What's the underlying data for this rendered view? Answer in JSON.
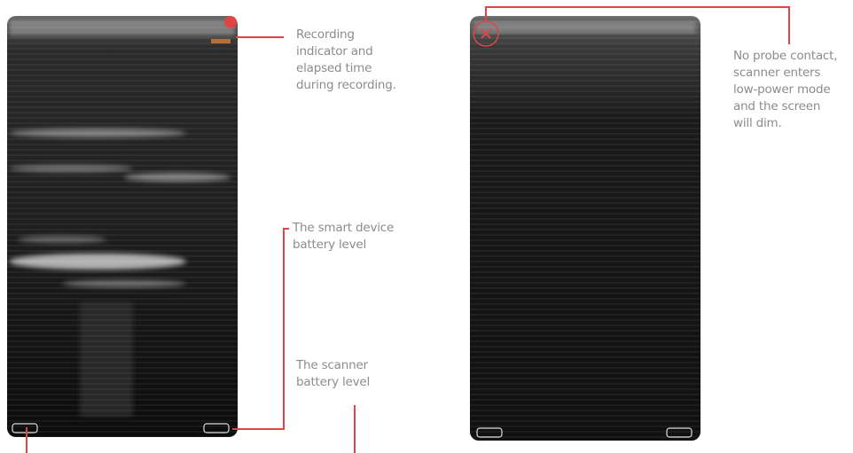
{
  "annotations": [
    {
      "lines": [
        "Recording",
        "indicator and",
        "elapsed time",
        "during recording."
      ]
    },
    {
      "lines": [
        "The smart device",
        "battery level"
      ]
    },
    {
      "lines": [
        "The scanner",
        "battery level"
      ]
    },
    {
      "lines": [
        "No probe contact,",
        "scanner enters",
        "low-power mode",
        "and the screen",
        "will dim."
      ]
    }
  ]
}
